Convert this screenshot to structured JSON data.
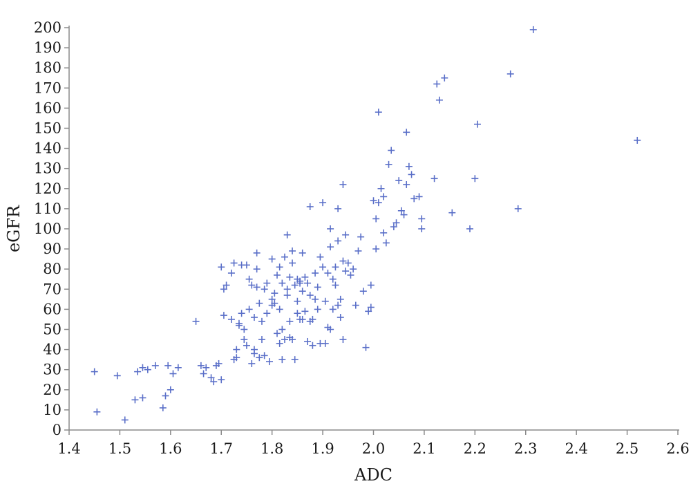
{
  "chart_data": {
    "type": "scatter",
    "title": "",
    "xlabel": "ADC",
    "ylabel": "eGFR",
    "xlim": [
      1.4,
      2.6
    ],
    "ylim": [
      0,
      200
    ],
    "xticks": [
      "1.4",
      "1.5",
      "1.6",
      "1.7",
      "1.8",
      "1.9",
      "2.0",
      "2.1",
      "2.2",
      "2.3",
      "2.4",
      "2.5",
      "2.6"
    ],
    "yticks": [
      "0",
      "10",
      "20",
      "30",
      "40",
      "50",
      "60",
      "70",
      "80",
      "90",
      "100",
      "110",
      "120",
      "130",
      "140",
      "150",
      "160",
      "170",
      "180",
      "190",
      "200"
    ],
    "grid": false,
    "marker": "plus",
    "color": "#5a6fc8",
    "series": [
      {
        "points": [
          [
            1.45,
            29
          ],
          [
            1.455,
            9
          ],
          [
            1.495,
            27
          ],
          [
            1.51,
            5
          ],
          [
            1.53,
            15
          ],
          [
            1.535,
            29
          ],
          [
            1.545,
            16
          ],
          [
            1.545,
            31
          ],
          [
            1.555,
            30
          ],
          [
            1.57,
            32
          ],
          [
            1.585,
            11
          ],
          [
            1.595,
            32
          ],
          [
            1.59,
            17
          ],
          [
            1.6,
            20
          ],
          [
            1.605,
            28
          ],
          [
            1.615,
            31
          ],
          [
            1.65,
            54
          ],
          [
            1.66,
            32
          ],
          [
            1.665,
            28
          ],
          [
            1.67,
            31
          ],
          [
            1.68,
            26
          ],
          [
            1.685,
            24
          ],
          [
            1.69,
            32
          ],
          [
            1.695,
            33
          ],
          [
            1.7,
            25
          ],
          [
            1.7,
            81
          ],
          [
            1.705,
            70
          ],
          [
            1.705,
            57
          ],
          [
            1.71,
            72
          ],
          [
            1.72,
            78
          ],
          [
            1.72,
            55
          ],
          [
            1.725,
            83
          ],
          [
            1.725,
            35
          ],
          [
            1.73,
            36
          ],
          [
            1.73,
            40
          ],
          [
            1.735,
            52
          ],
          [
            1.735,
            53
          ],
          [
            1.74,
            82
          ],
          [
            1.74,
            58
          ],
          [
            1.745,
            45
          ],
          [
            1.745,
            50
          ],
          [
            1.75,
            42
          ],
          [
            1.75,
            82
          ],
          [
            1.755,
            75
          ],
          [
            1.755,
            60
          ],
          [
            1.76,
            72
          ],
          [
            1.76,
            33
          ],
          [
            1.765,
            38
          ],
          [
            1.765,
            40
          ],
          [
            1.765,
            56
          ],
          [
            1.77,
            88
          ],
          [
            1.77,
            71
          ],
          [
            1.77,
            80
          ],
          [
            1.775,
            36
          ],
          [
            1.775,
            63
          ],
          [
            1.78,
            45
          ],
          [
            1.78,
            54
          ],
          [
            1.785,
            37
          ],
          [
            1.785,
            70
          ],
          [
            1.79,
            58
          ],
          [
            1.79,
            73
          ],
          [
            1.795,
            34
          ],
          [
            1.8,
            62
          ],
          [
            1.8,
            85
          ],
          [
            1.8,
            65
          ],
          [
            1.805,
            68
          ],
          [
            1.805,
            63
          ],
          [
            1.81,
            48
          ],
          [
            1.81,
            77
          ],
          [
            1.815,
            43
          ],
          [
            1.815,
            60
          ],
          [
            1.815,
            81
          ],
          [
            1.82,
            73
          ],
          [
            1.82,
            50
          ],
          [
            1.82,
            35
          ],
          [
            1.825,
            86
          ],
          [
            1.825,
            45
          ],
          [
            1.83,
            70
          ],
          [
            1.83,
            67
          ],
          [
            1.83,
            97
          ],
          [
            1.835,
            46
          ],
          [
            1.835,
            54
          ],
          [
            1.835,
            76
          ],
          [
            1.84,
            45
          ],
          [
            1.84,
            83
          ],
          [
            1.84,
            89
          ],
          [
            1.845,
            35
          ],
          [
            1.845,
            72
          ],
          [
            1.85,
            75
          ],
          [
            1.85,
            58
          ],
          [
            1.85,
            64
          ],
          [
            1.855,
            74
          ],
          [
            1.855,
            55
          ],
          [
            1.855,
            73
          ],
          [
            1.86,
            88
          ],
          [
            1.86,
            69
          ],
          [
            1.86,
            55
          ],
          [
            1.865,
            76
          ],
          [
            1.865,
            59
          ],
          [
            1.87,
            44
          ],
          [
            1.87,
            73
          ],
          [
            1.875,
            67
          ],
          [
            1.875,
            54
          ],
          [
            1.875,
            111
          ],
          [
            1.88,
            42
          ],
          [
            1.88,
            55
          ],
          [
            1.885,
            65
          ],
          [
            1.885,
            78
          ],
          [
            1.89,
            71
          ],
          [
            1.89,
            60
          ],
          [
            1.895,
            86
          ],
          [
            1.895,
            43
          ],
          [
            1.9,
            113
          ],
          [
            1.9,
            81
          ],
          [
            1.905,
            43
          ],
          [
            1.905,
            64
          ],
          [
            1.91,
            51
          ],
          [
            1.91,
            78
          ],
          [
            1.915,
            91
          ],
          [
            1.915,
            100
          ],
          [
            1.915,
            50
          ],
          [
            1.92,
            75
          ],
          [
            1.92,
            60
          ],
          [
            1.925,
            81
          ],
          [
            1.925,
            72
          ],
          [
            1.93,
            62
          ],
          [
            1.93,
            94
          ],
          [
            1.93,
            110
          ],
          [
            1.935,
            56
          ],
          [
            1.935,
            65
          ],
          [
            1.94,
            84
          ],
          [
            1.94,
            45
          ],
          [
            1.94,
            122
          ],
          [
            1.945,
            97
          ],
          [
            1.945,
            79
          ],
          [
            1.95,
            83
          ],
          [
            1.955,
            77
          ],
          [
            1.96,
            80
          ],
          [
            1.965,
            62
          ],
          [
            1.97,
            89
          ],
          [
            1.975,
            96
          ],
          [
            1.98,
            69
          ],
          [
            1.985,
            41
          ],
          [
            1.99,
            59
          ],
          [
            1.995,
            61
          ],
          [
            1.995,
            72
          ],
          [
            2.0,
            114
          ],
          [
            2.005,
            105
          ],
          [
            2.005,
            90
          ],
          [
            2.01,
            113
          ],
          [
            2.01,
            158
          ],
          [
            2.015,
            120
          ],
          [
            2.02,
            98
          ],
          [
            2.02,
            116
          ],
          [
            2.025,
            93
          ],
          [
            2.03,
            132
          ],
          [
            2.035,
            139
          ],
          [
            2.04,
            101
          ],
          [
            2.045,
            103
          ],
          [
            2.05,
            124
          ],
          [
            2.055,
            109
          ],
          [
            2.06,
            107
          ],
          [
            2.065,
            148
          ],
          [
            2.065,
            122
          ],
          [
            2.07,
            131
          ],
          [
            2.075,
            127
          ],
          [
            2.08,
            115
          ],
          [
            2.09,
            116
          ],
          [
            2.095,
            100
          ],
          [
            2.095,
            105
          ],
          [
            2.12,
            125
          ],
          [
            2.125,
            172
          ],
          [
            2.13,
            164
          ],
          [
            2.14,
            175
          ],
          [
            2.155,
            108
          ],
          [
            2.19,
            100
          ],
          [
            2.2,
            125
          ],
          [
            2.205,
            152
          ],
          [
            2.27,
            177
          ],
          [
            2.285,
            110
          ],
          [
            2.315,
            199
          ],
          [
            2.52,
            144
          ]
        ]
      }
    ]
  }
}
